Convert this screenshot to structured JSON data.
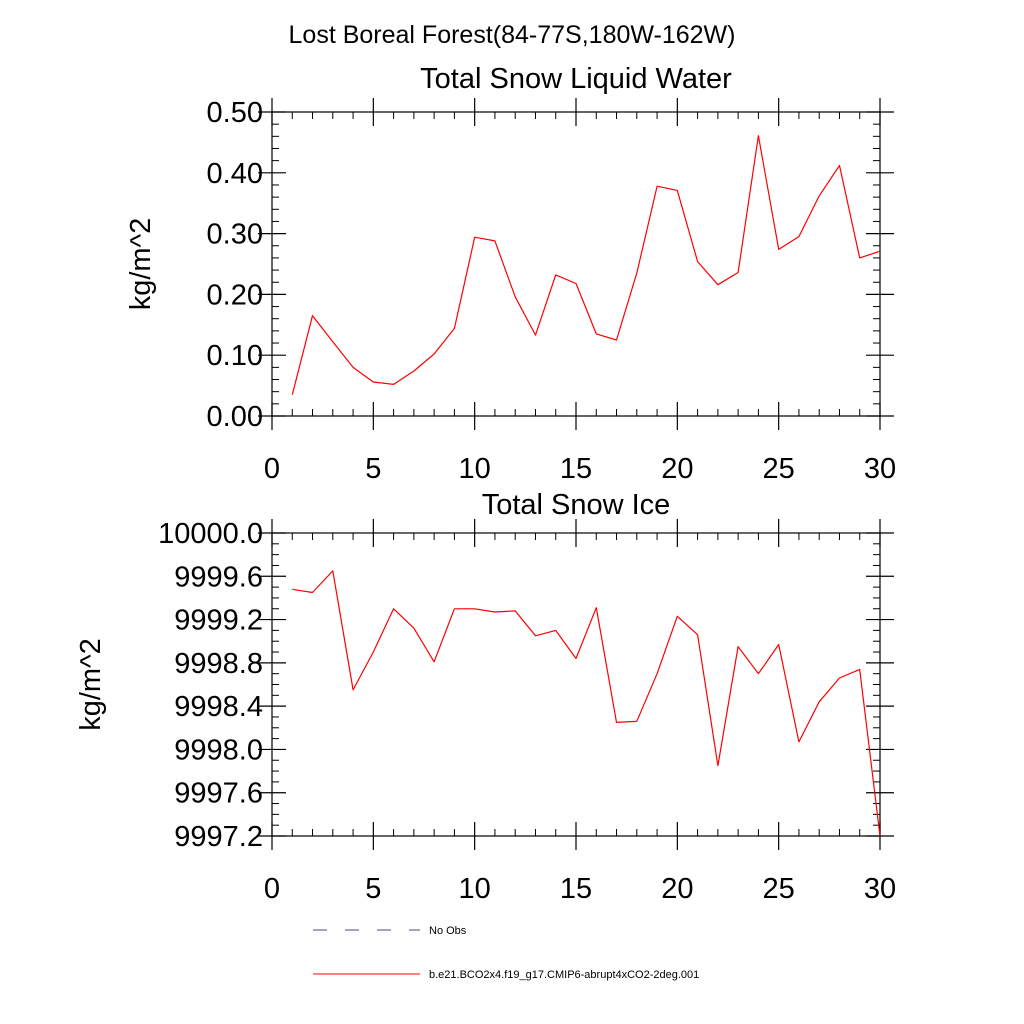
{
  "suptitle": "Lost Boreal Forest(84-77S,180W-162W)",
  "colors": {
    "model_line": "#ff0000",
    "obs_line": "#4a4a6a",
    "axis": "#000000"
  },
  "chart_data": [
    {
      "type": "line",
      "title": "Total Snow Liquid Water",
      "xlabel": "",
      "ylabel": "kg/m^2",
      "xlim": [
        0,
        30
      ],
      "ylim": [
        0,
        0.5
      ],
      "xticks": [
        0,
        5,
        10,
        15,
        20,
        25,
        30
      ],
      "xtick_labels": [
        "0",
        "5",
        "10",
        "15",
        "20",
        "25",
        "30"
      ],
      "yticks": [
        0,
        0.1,
        0.2,
        0.3,
        0.4,
        0.5
      ],
      "ytick_labels": [
        "0.00",
        "0.10",
        "0.20",
        "0.30",
        "0.40",
        "0.50"
      ],
      "x": [
        1,
        2,
        3,
        4,
        5,
        6,
        7,
        8,
        9,
        10,
        11,
        12,
        13,
        14,
        15,
        16,
        17,
        18,
        19,
        20,
        21,
        22,
        23,
        24,
        25,
        26,
        27,
        28,
        29,
        30
      ],
      "series": [
        {
          "name": "b.e21.BCO2x4.f19_g17.CMIP6-abrupt4xCO2-2deg.001",
          "values": [
            0.035,
            0.165,
            0.122,
            0.08,
            0.056,
            0.052,
            0.074,
            0.102,
            0.144,
            0.294,
            0.288,
            0.196,
            0.133,
            0.232,
            0.218,
            0.135,
            0.125,
            0.235,
            0.378,
            0.371,
            0.254,
            0.216,
            0.236,
            0.461,
            0.274,
            0.295,
            0.362,
            0.412,
            0.26,
            0.271
          ]
        }
      ]
    },
    {
      "type": "line",
      "title": "Total Snow Ice",
      "xlabel": "",
      "ylabel": "kg/m^2",
      "xlim": [
        0,
        30
      ],
      "ylim": [
        9997.2,
        10000.0
      ],
      "xticks": [
        0,
        5,
        10,
        15,
        20,
        25,
        30
      ],
      "xtick_labels": [
        "0",
        "5",
        "10",
        "15",
        "20",
        "25",
        "30"
      ],
      "yticks": [
        9997.2,
        9997.6,
        9998.0,
        9998.4,
        9998.8,
        9999.2,
        9999.6,
        10000.0
      ],
      "ytick_labels": [
        "9997.2",
        "9997.6",
        "9998.0",
        "9998.4",
        "9998.8",
        "9999.2",
        "9999.6",
        "10000.0"
      ],
      "x": [
        1,
        2,
        3,
        4,
        5,
        6,
        7,
        8,
        9,
        10,
        11,
        12,
        13,
        14,
        15,
        16,
        17,
        18,
        19,
        20,
        21,
        22,
        23,
        24,
        25,
        26,
        27,
        28,
        29,
        30
      ],
      "series": [
        {
          "name": "b.e21.BCO2x4.f19_g17.CMIP6-abrupt4xCO2-2deg.001",
          "values": [
            9999.48,
            9999.45,
            9999.65,
            9998.55,
            9998.9,
            9999.3,
            9999.12,
            9998.81,
            9999.3,
            9999.3,
            9999.27,
            9999.28,
            9999.05,
            9999.1,
            9998.84,
            9999.31,
            9998.25,
            9998.26,
            9998.7,
            9999.23,
            9999.06,
            9997.85,
            9998.95,
            9998.7,
            9998.97,
            9998.07,
            9998.44,
            9998.66,
            9998.74,
            9997.2
          ]
        }
      ]
    }
  ],
  "legend": [
    {
      "label": "No Obs",
      "style": "dashed"
    },
    {
      "label": "b.e21.BCO2x4.f19_g17.CMIP6-abrupt4xCO2-2deg.001",
      "style": "solid"
    }
  ]
}
